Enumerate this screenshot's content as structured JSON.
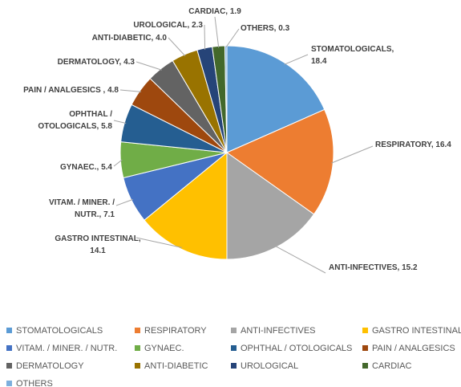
{
  "chart_data": {
    "type": "pie",
    "categories": [
      "STOMATOLOGICALS",
      "RESPIRATORY",
      "ANTI-INFECTIVES",
      "GASTRO INTESTINAL",
      "VITAM. / MINER. / NUTR.",
      "GYNAEC.",
      "OPHTHAL / OTOLOGICALS",
      "PAIN / ANALGESICS",
      "DERMATOLOGY",
      "ANTI-DIABETIC",
      "UROLOGICAL",
      "CARDIAC",
      "OTHERS"
    ],
    "values": [
      18.4,
      16.4,
      15.2,
      14.1,
      7.1,
      5.4,
      5.8,
      4.8,
      4.3,
      4.0,
      2.3,
      1.9,
      0.3
    ],
    "value_labels": [
      [
        "STOMATOLOGICALS,",
        "18.4"
      ],
      [
        "RESPIRATORY, 16.4"
      ],
      [
        "ANTI-INFECTIVES, 15.2"
      ],
      [
        "GASTRO INTESTINAL,",
        "14.1"
      ],
      [
        "VITAM. / MINER. /",
        "NUTR., 7.1"
      ],
      [
        "GYNAEC., 5.4"
      ],
      [
        "OPHTHAL /",
        "OTOLOGICALS, 5.8"
      ],
      [
        "PAIN / ANALGESICS , 4.8"
      ],
      [
        "DERMATOLOGY, 4.3"
      ],
      [
        "ANTI-DIABETIC, 4.0"
      ],
      [
        "UROLOGICAL, 2.3"
      ],
      [
        "CARDIAC, 1.9"
      ],
      [
        "OTHERS, 0.3"
      ]
    ],
    "colors": [
      "#5b9bd5",
      "#ed7d31",
      "#a5a5a5",
      "#ffc000",
      "#4472c4",
      "#70ad47",
      "#255e91",
      "#9e480e",
      "#636363",
      "#997300",
      "#264478",
      "#43682b",
      "#7cafdd"
    ],
    "legend": "bottom"
  }
}
